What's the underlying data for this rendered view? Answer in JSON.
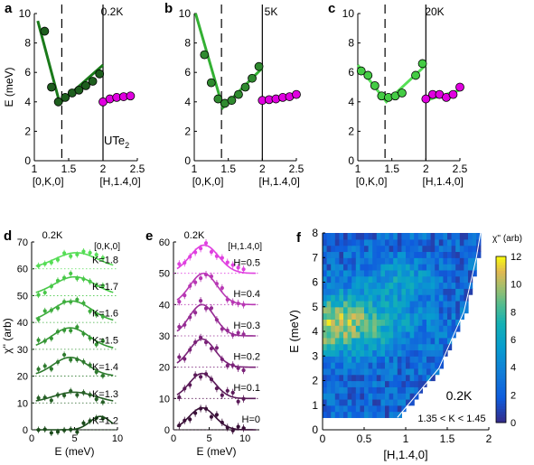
{
  "panels": {
    "a": {
      "letter": "a",
      "temp": "0.2K",
      "material": "UTe",
      "material_sub": "2"
    },
    "b": {
      "letter": "b",
      "temp": "5K"
    },
    "c": {
      "letter": "c",
      "temp": "20K"
    },
    "d": {
      "letter": "d",
      "temp": "0.2K",
      "legend": "[0,K,0]"
    },
    "e": {
      "letter": "e",
      "temp": "0.2K",
      "legend": "[H,1.4,0]"
    },
    "f": {
      "letter": "f",
      "temp": "0.2K",
      "range_label": "1.35 < K < 1.45",
      "colorbar_label": "χ'' (arb)"
    }
  },
  "chart_data": [
    {
      "id": "a",
      "type": "scatter",
      "ylabel": "E (meV)",
      "xlabel_left": "[0,K,0]",
      "xlabel_right": "[H,1.4,0]",
      "xlim": [
        1,
        2.5
      ],
      "ylim": [
        0,
        10
      ],
      "xticks": [
        "1",
        "1.5",
        "2",
        "2.5"
      ],
      "yticks": [
        "0",
        "2",
        "4",
        "6",
        "8",
        "10"
      ],
      "dashed_x": 1.4,
      "solid_x": 2.0,
      "series": [
        {
          "color": "#1e5e1e",
          "points": [
            [
              1.15,
              8.8
            ],
            [
              1.25,
              5.0
            ],
            [
              1.35,
              4.0
            ],
            [
              1.45,
              4.3
            ],
            [
              1.55,
              4.6
            ],
            [
              1.65,
              4.8
            ],
            [
              1.75,
              5.1
            ],
            [
              1.85,
              5.4
            ],
            [
              1.95,
              5.9
            ]
          ]
        },
        {
          "color": "#e000e0",
          "points": [
            [
              2.0,
              4.0
            ],
            [
              2.1,
              4.2
            ],
            [
              2.2,
              4.3
            ],
            [
              2.3,
              4.35
            ],
            [
              2.4,
              4.4
            ]
          ]
        }
      ],
      "fit_lines": [
        [
          [
            1.05,
            9.5
          ],
          [
            1.37,
            3.9
          ],
          [
            2.0,
            6.5
          ]
        ]
      ],
      "fit_color": "#1a7a1a"
    },
    {
      "id": "b",
      "type": "scatter",
      "ylabel": "",
      "xlabel_left": "[0,K,0]",
      "xlabel_right": "[H,1.4,0]",
      "xlim": [
        1,
        2.5
      ],
      "ylim": [
        0,
        10
      ],
      "xticks": [
        "1",
        "1.5",
        "2",
        "2.5"
      ],
      "yticks": [
        "0",
        "2",
        "4",
        "6",
        "8",
        "10"
      ],
      "dashed_x": 1.4,
      "solid_x": 2.0,
      "series": [
        {
          "color": "#2f8a2f",
          "points": [
            [
              1.15,
              7.2
            ],
            [
              1.25,
              5.3
            ],
            [
              1.35,
              4.2
            ],
            [
              1.45,
              3.9
            ],
            [
              1.55,
              4.1
            ],
            [
              1.65,
              4.5
            ],
            [
              1.75,
              5.0
            ],
            [
              1.85,
              5.6
            ],
            [
              1.95,
              6.4
            ]
          ]
        },
        {
          "color": "#e000e0",
          "points": [
            [
              2.0,
              4.1
            ],
            [
              2.1,
              4.15
            ],
            [
              2.2,
              4.2
            ],
            [
              2.3,
              4.3
            ],
            [
              2.4,
              4.35
            ],
            [
              2.5,
              4.5
            ]
          ]
        }
      ],
      "fit_lines": [
        [
          [
            1.02,
            10.0
          ],
          [
            1.42,
            3.6
          ],
          [
            2.0,
            6.3
          ]
        ]
      ],
      "fit_color": "#33b033"
    },
    {
      "id": "c",
      "type": "scatter",
      "ylabel": "",
      "xlabel_left": "[0,K,0]",
      "xlabel_right": "[H,1.4,0]",
      "xlim": [
        1,
        2.5
      ],
      "ylim": [
        0,
        10
      ],
      "xticks": [
        "1",
        "1.5",
        "2",
        "2.5"
      ],
      "yticks": [
        "0",
        "2",
        "4",
        "6",
        "8",
        "10"
      ],
      "dashed_x": 1.4,
      "solid_x": 2.0,
      "series": [
        {
          "color": "#44cc44",
          "points": [
            [
              1.05,
              6.1
            ],
            [
              1.15,
              5.8
            ],
            [
              1.25,
              5.1
            ],
            [
              1.35,
              4.4
            ],
            [
              1.45,
              4.3
            ],
            [
              1.55,
              4.4
            ],
            [
              1.65,
              4.6
            ],
            [
              1.85,
              5.8
            ],
            [
              1.95,
              6.6
            ]
          ]
        },
        {
          "color": "#e000e0",
          "points": [
            [
              2.0,
              4.2
            ],
            [
              2.1,
              4.5
            ],
            [
              2.2,
              4.5
            ],
            [
              2.3,
              4.3
            ],
            [
              2.4,
              4.5
            ],
            [
              2.5,
              5.0
            ]
          ]
        }
      ],
      "fit_lines": [
        [
          [
            1.0,
            6.5
          ],
          [
            1.42,
            4.0
          ],
          [
            2.0,
            6.5
          ]
        ],
        [
          [
            2.0,
            4.1
          ],
          [
            2.5,
            4.8
          ]
        ]
      ],
      "fit_color": "#55e055"
    },
    {
      "id": "d",
      "type": "line",
      "ylabel": "χ'' (arb)",
      "xlabel": "E (meV)",
      "xlim": [
        0,
        10
      ],
      "ylim": [
        0,
        70
      ],
      "xticks": [
        "0",
        "5",
        "10"
      ],
      "yticks": [
        "0",
        "10",
        "20",
        "30",
        "40",
        "50",
        "60",
        "70"
      ],
      "offset_step": 10,
      "series": [
        {
          "name": "K=1.2",
          "offset": 0,
          "peak": 8,
          "amp": 5,
          "width": 1.2,
          "color": "#1a4a1a"
        },
        {
          "name": "K=1.3",
          "offset": 10,
          "peak": 5,
          "amp": 4,
          "width": 2.5,
          "color": "#266026"
        },
        {
          "name": "K=1.4",
          "offset": 20,
          "peak": 4.5,
          "amp": 7,
          "width": 2.0,
          "color": "#2e7a2e"
        },
        {
          "name": "K=1.5",
          "offset": 30,
          "peak": 4.5,
          "amp": 8,
          "width": 2.2,
          "color": "#349634"
        },
        {
          "name": "K=1.6",
          "offset": 40,
          "peak": 4.7,
          "amp": 8,
          "width": 2.3,
          "color": "#3eae3e"
        },
        {
          "name": "K=1.7",
          "offset": 50,
          "peak": 5.0,
          "amp": 7,
          "width": 2.4,
          "color": "#48c848"
        },
        {
          "name": "K=1.8",
          "offset": 60,
          "peak": 5.2,
          "amp": 6,
          "width": 2.5,
          "color": "#55dd55"
        }
      ]
    },
    {
      "id": "e",
      "type": "line",
      "ylabel": "",
      "xlabel": "E (meV)",
      "xlim": [
        0,
        12
      ],
      "ylim": [
        0,
        60
      ],
      "xticks": [
        "0",
        "5",
        "10"
      ],
      "yticks": [
        "0",
        "10",
        "20",
        "30",
        "40",
        "50",
        "60"
      ],
      "offset_step": 10,
      "series": [
        {
          "name": "H=0",
          "offset": 0,
          "peak": 4.0,
          "amp": 7,
          "width": 1.8,
          "color": "#3a1038"
        },
        {
          "name": "H=0.1",
          "offset": 10,
          "peak": 4.0,
          "amp": 8,
          "width": 1.8,
          "color": "#5a1a58"
        },
        {
          "name": "H=0.2",
          "offset": 20,
          "peak": 4.0,
          "amp": 9,
          "width": 1.8,
          "color": "#7a2278"
        },
        {
          "name": "H=0.3",
          "offset": 30,
          "peak": 4.0,
          "amp": 10,
          "width": 1.8,
          "color": "#962c94"
        },
        {
          "name": "H=0.4",
          "offset": 40,
          "peak": 4.2,
          "amp": 10,
          "width": 1.9,
          "color": "#b838b4"
        },
        {
          "name": "H=0.5",
          "offset": 50,
          "peak": 4.3,
          "amp": 9,
          "width": 2.0,
          "color": "#e040e0"
        }
      ]
    },
    {
      "id": "f",
      "type": "heatmap",
      "ylabel": "E (meV)",
      "xlabel": "[H,1.4,0]",
      "xlim": [
        0,
        2
      ],
      "ylim": [
        0,
        8
      ],
      "xticks": [
        "0",
        "0.5",
        "1",
        "1.5",
        "2"
      ],
      "yticks": [
        "0",
        "1",
        "2",
        "3",
        "4",
        "5",
        "6",
        "7",
        "8"
      ],
      "colorbar_range": [
        0,
        12
      ],
      "colorbar_ticks": [
        "0",
        "2",
        "4",
        "6",
        "8",
        "10",
        "12"
      ],
      "edge_line": [
        [
          0.9,
          0.5
        ],
        [
          1.4,
          2.5
        ],
        [
          1.7,
          4.8
        ],
        [
          1.85,
          7.0
        ],
        [
          1.9,
          8.0
        ]
      ]
    }
  ]
}
